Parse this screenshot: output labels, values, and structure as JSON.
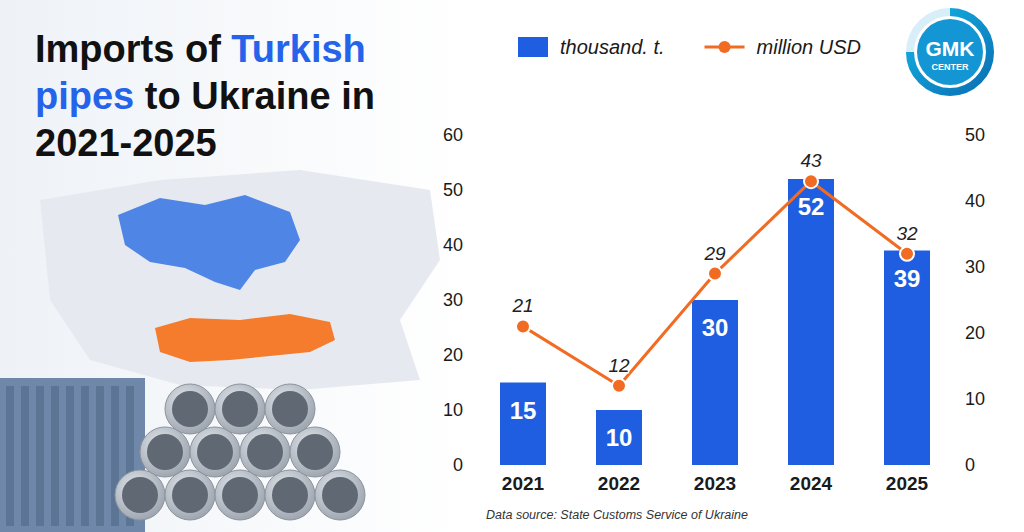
{
  "chart_data": {
    "type": "bar",
    "title": "Imports of Turkish pipes to Ukraine in 2021-2025",
    "categories": [
      "2021",
      "2022",
      "2023",
      "2024",
      "2025"
    ],
    "series": [
      {
        "name": "thousand. t.",
        "type": "bar",
        "color": "#1f5ee0",
        "values": [
          15,
          10,
          30,
          52,
          39
        ]
      },
      {
        "name": "million USD",
        "type": "line",
        "color": "#f26b22",
        "axis": "y2",
        "marker": "circle",
        "values": [
          21,
          12,
          29,
          43,
          32
        ]
      }
    ],
    "ylim": [
      0,
      60
    ],
    "yticks": [
      0,
      10,
      20,
      30,
      40,
      50,
      60
    ],
    "y2lim": [
      0,
      50
    ],
    "y2ticks": [
      0,
      10,
      20,
      30,
      40,
      50
    ],
    "grid": false,
    "legend": "top",
    "data_labels": true,
    "source": "Data source: State Customs Service of Ukraine"
  },
  "logo": {
    "text": "GMK",
    "subtext": "CENTER"
  }
}
